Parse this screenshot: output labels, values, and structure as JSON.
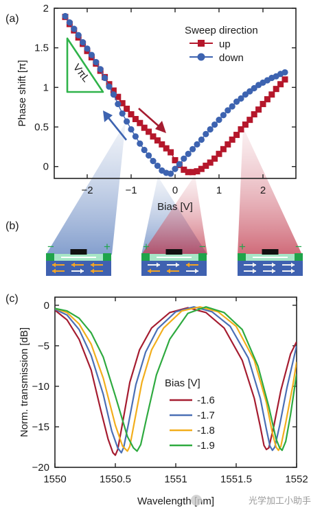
{
  "watermark": "光学加工小助手",
  "chart_data": [
    {
      "panel": "(a)",
      "type": "scatter",
      "xlabel": "Bias [V]",
      "ylabel": "Phase shift [π]",
      "xlim": [
        -2.75,
        2.75
      ],
      "ylim": [
        -0.15,
        2.0
      ],
      "xticks": [
        -2,
        -1,
        0,
        1,
        2
      ],
      "yticks": [
        0,
        0.5,
        1,
        1.5,
        2
      ],
      "legend_title": "Sweep direction",
      "legend_position": "top-right",
      "annotation": "VπL",
      "series": [
        {
          "name": "up",
          "color": "#b5172b",
          "marker": "square",
          "x": [
            -2.5,
            -2.4,
            -2.3,
            -2.2,
            -2.1,
            -2.0,
            -1.9,
            -1.8,
            -1.7,
            -1.6,
            -1.5,
            -1.4,
            -1.3,
            -1.2,
            -1.1,
            -1.0,
            -0.9,
            -0.8,
            -0.7,
            -0.6,
            -0.5,
            -0.4,
            -0.3,
            -0.2,
            -0.1,
            0.0,
            0.1,
            0.2,
            0.3,
            0.4,
            0.5,
            0.6,
            0.7,
            0.8,
            0.9,
            1.0,
            1.1,
            1.2,
            1.3,
            1.4,
            1.5,
            1.6,
            1.7,
            1.8,
            1.9,
            2.0,
            2.1,
            2.2,
            2.3,
            2.4,
            2.5
          ],
          "y": [
            1.89,
            1.8,
            1.72,
            1.63,
            1.55,
            1.46,
            1.38,
            1.3,
            1.21,
            1.13,
            1.04,
            0.96,
            0.88,
            0.8,
            0.73,
            0.66,
            0.6,
            0.55,
            0.49,
            0.44,
            0.38,
            0.33,
            0.28,
            0.23,
            0.18,
            0.08,
            0.02,
            -0.04,
            -0.07,
            -0.07,
            -0.06,
            -0.03,
            0.01,
            0.05,
            0.1,
            0.16,
            0.22,
            0.28,
            0.34,
            0.4,
            0.47,
            0.53,
            0.59,
            0.66,
            0.72,
            0.79,
            0.85,
            0.91,
            0.98,
            1.04,
            1.1
          ]
        },
        {
          "name": "down",
          "color": "#3d63b0",
          "marker": "circle",
          "x": [
            -2.5,
            -2.4,
            -2.3,
            -2.2,
            -2.1,
            -2.0,
            -1.9,
            -1.8,
            -1.7,
            -1.6,
            -1.5,
            -1.4,
            -1.3,
            -1.2,
            -1.1,
            -1.0,
            -0.9,
            -0.8,
            -0.7,
            -0.6,
            -0.5,
            -0.4,
            -0.3,
            -0.2,
            -0.1,
            0.0,
            0.1,
            0.2,
            0.3,
            0.4,
            0.5,
            0.6,
            0.7,
            0.8,
            0.9,
            1.0,
            1.1,
            1.2,
            1.3,
            1.4,
            1.5,
            1.6,
            1.7,
            1.8,
            1.9,
            2.0,
            2.1,
            2.2,
            2.3,
            2.4,
            2.5
          ],
          "y": [
            1.9,
            1.82,
            1.74,
            1.66,
            1.57,
            1.49,
            1.41,
            1.32,
            1.23,
            1.12,
            1.01,
            0.91,
            0.79,
            0.67,
            0.57,
            0.47,
            0.38,
            0.29,
            0.21,
            0.14,
            0.07,
            0.01,
            -0.05,
            -0.08,
            -0.09,
            -0.03,
            0.03,
            0.1,
            0.16,
            0.22,
            0.28,
            0.34,
            0.41,
            0.47,
            0.53,
            0.59,
            0.65,
            0.71,
            0.76,
            0.82,
            0.86,
            0.91,
            0.95,
            0.99,
            1.03,
            1.06,
            1.09,
            1.12,
            1.14,
            1.17,
            1.19
          ]
        }
      ]
    },
    {
      "panel": "(c)",
      "type": "line",
      "xlabel": "Wavelength [nm]",
      "ylabel": "Norm. transmission [dB]",
      "xlim": [
        1550,
        1552
      ],
      "ylim": [
        -20,
        1
      ],
      "xticks": [
        1550,
        1550.5,
        1551,
        1551.5,
        1552
      ],
      "xtick_labels": [
        "1550",
        "1550.5",
        "1551",
        "1551.5",
        "1552"
      ],
      "yticks": [
        0,
        -5,
        -10,
        -15,
        -20
      ],
      "legend_title": "Bias [V]",
      "legend_position": "bottom-center",
      "series": [
        {
          "name": "-1.6",
          "color": "#a51c30",
          "x": [
            1550.0,
            1550.1,
            1550.2,
            1550.3,
            1550.38,
            1550.44,
            1550.48,
            1550.5,
            1550.52,
            1550.56,
            1550.62,
            1550.7,
            1550.8,
            1550.95,
            1551.1,
            1551.25,
            1551.4,
            1551.55,
            1551.65,
            1551.7,
            1551.73,
            1551.75,
            1551.77,
            1551.81,
            1551.87,
            1551.95,
            1552.0
          ],
          "y": [
            -0.6,
            -1.8,
            -4.2,
            -8.0,
            -13.0,
            -16.5,
            -18.2,
            -18.5,
            -17.8,
            -14.5,
            -9.5,
            -5.5,
            -2.8,
            -0.9,
            -0.3,
            -0.9,
            -2.8,
            -6.8,
            -11.5,
            -15.0,
            -17.3,
            -17.8,
            -17.6,
            -15.0,
            -10.5,
            -6.0,
            -4.5
          ]
        },
        {
          "name": "-1.7",
          "color": "#4a6fb5",
          "x": [
            1550.0,
            1550.1,
            1550.2,
            1550.3,
            1550.4,
            1550.47,
            1550.52,
            1550.55,
            1550.57,
            1550.61,
            1550.67,
            1550.75,
            1550.85,
            1551.0,
            1551.15,
            1551.3,
            1551.45,
            1551.6,
            1551.7,
            1551.75,
            1551.78,
            1551.8,
            1551.82,
            1551.86,
            1551.92,
            1552.0
          ],
          "y": [
            -0.5,
            -1.2,
            -3.0,
            -6.2,
            -11.0,
            -15.5,
            -17.6,
            -18.2,
            -17.5,
            -14.5,
            -9.8,
            -5.8,
            -2.9,
            -0.8,
            -0.2,
            -0.8,
            -2.6,
            -6.5,
            -11.5,
            -15.3,
            -17.4,
            -17.9,
            -17.5,
            -14.8,
            -10.2,
            -5.0
          ]
        },
        {
          "name": "-1.8",
          "color": "#f2ae1c",
          "x": [
            1550.0,
            1550.1,
            1550.2,
            1550.3,
            1550.4,
            1550.5,
            1550.56,
            1550.6,
            1550.62,
            1550.66,
            1550.72,
            1550.8,
            1550.9,
            1551.05,
            1551.2,
            1551.35,
            1551.5,
            1551.65,
            1551.75,
            1551.8,
            1551.83,
            1551.85,
            1551.87,
            1551.91,
            1551.97,
            1552.0
          ],
          "y": [
            -0.4,
            -0.9,
            -2.3,
            -4.8,
            -9.0,
            -14.8,
            -17.4,
            -18.0,
            -17.4,
            -14.2,
            -9.5,
            -5.5,
            -2.8,
            -0.7,
            -0.2,
            -0.8,
            -2.6,
            -6.8,
            -12.0,
            -15.8,
            -17.5,
            -17.9,
            -17.4,
            -14.5,
            -9.8,
            -7.0
          ]
        },
        {
          "name": "-1.9",
          "color": "#2eaa3f",
          "x": [
            1550.0,
            1550.1,
            1550.2,
            1550.3,
            1550.4,
            1550.5,
            1550.6,
            1550.65,
            1550.68,
            1550.71,
            1550.76,
            1550.84,
            1550.95,
            1551.1,
            1551.25,
            1551.4,
            1551.55,
            1551.68,
            1551.77,
            1551.83,
            1551.86,
            1551.88,
            1551.91,
            1551.95,
            1552.0
          ],
          "y": [
            -0.4,
            -0.7,
            -1.6,
            -3.4,
            -6.4,
            -11.2,
            -16.2,
            -17.6,
            -18.0,
            -17.2,
            -13.8,
            -8.6,
            -4.2,
            -1.0,
            -0.2,
            -0.9,
            -3.0,
            -7.5,
            -12.5,
            -16.5,
            -17.6,
            -17.9,
            -16.8,
            -13.5,
            -8.5
          ]
        }
      ]
    }
  ],
  "panel_b": {
    "label": "(b)",
    "devices": [
      {
        "left_sign": "−",
        "right_sign": "+",
        "arrow_pattern": "mixed-left"
      },
      {
        "left_sign": "+",
        "right_sign": "−",
        "arrow_pattern": "split"
      },
      {
        "left_sign": "+",
        "right_sign": "−",
        "arrow_pattern": "all-right"
      }
    ]
  }
}
